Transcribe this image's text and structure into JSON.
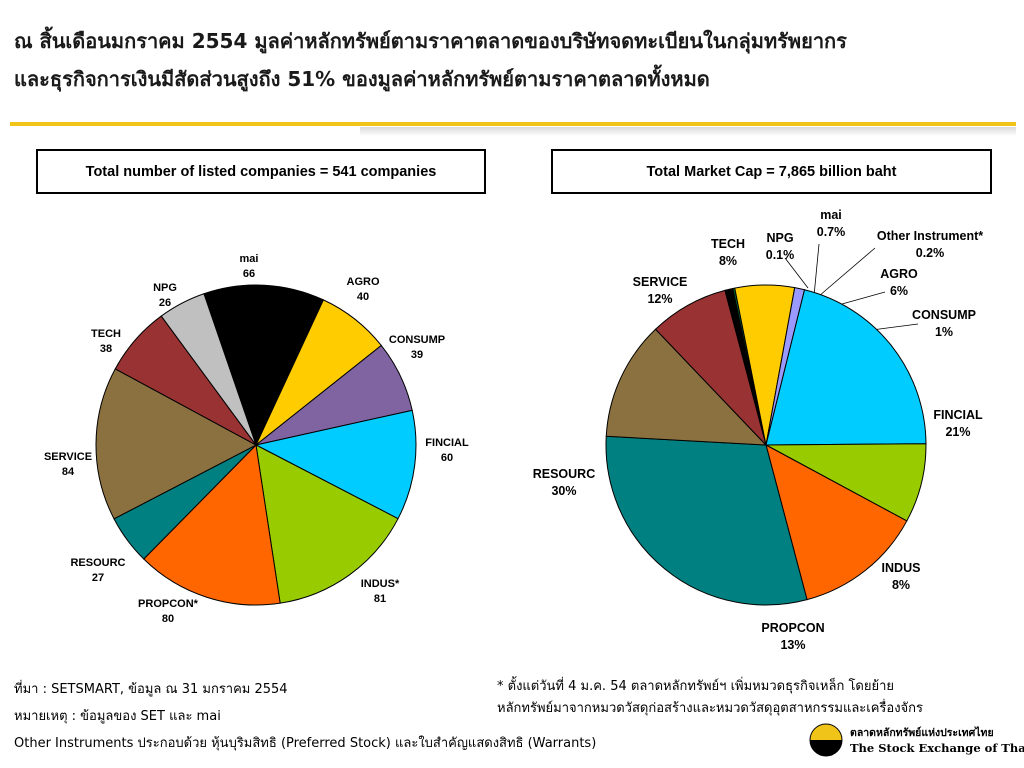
{
  "header": {
    "line1": "ณ สิ้นเดือนมกราคม 2554 มูลค่าหลักทรัพย์ตามราคาตลาดของบริษัทจดทะเบียนในกลุ่มทรัพยากร",
    "line2": "และธุรกิจการเงินมีสัดส่วนสูงถึง 51% ของมูลค่าหลักทรัพย์ตามราคาตลาดทั้งหมด"
  },
  "boxes": {
    "left": "Total number of listed companies = 541 companies",
    "right": "Total Market Cap = 7,865  billion baht"
  },
  "chart_data": [
    {
      "type": "pie",
      "title": "Total number of listed companies = 541 companies",
      "slices": [
        {
          "label": "mai",
          "value": 66,
          "value_label": "66",
          "color": "#000000"
        },
        {
          "label": "AGRO",
          "value": 40,
          "value_label": "40",
          "color": "#ffcc00"
        },
        {
          "label": "CONSUMP",
          "value": 39,
          "value_label": "39",
          "color": "#8064a2"
        },
        {
          "label": "FINCIAL",
          "value": 60,
          "value_label": "60",
          "color": "#00ccff"
        },
        {
          "label": "INDUS*",
          "value": 81,
          "value_label": "81",
          "color": "#99cc00"
        },
        {
          "label": "PROPCON*",
          "value": 80,
          "value_label": "80",
          "color": "#ff6600"
        },
        {
          "label": "RESOURC",
          "value": 27,
          "value_label": "27",
          "color": "#008080"
        },
        {
          "label": "SERVICE",
          "value": 84,
          "value_label": "84",
          "color": "#8c7140"
        },
        {
          "label": "TECH",
          "value": 38,
          "value_label": "38",
          "color": "#993333"
        },
        {
          "label": "NPG",
          "value": 26,
          "value_label": "26",
          "color": "#c0c0c0"
        }
      ]
    },
    {
      "type": "pie",
      "title": "Total Market Cap = 7,865  billion baht",
      "slices": [
        {
          "label": "mai",
          "value": 0.7,
          "value_label": "0.7%",
          "color": "#000000"
        },
        {
          "label": "Other Instrument*",
          "value": 0.2,
          "value_label": "0.2%",
          "color": "#006633"
        },
        {
          "label": "AGRO",
          "value": 6,
          "value_label": "6%",
          "color": "#ffcc00"
        },
        {
          "label": "CONSUMP",
          "value": 1,
          "value_label": "1%",
          "color": "#9999ff"
        },
        {
          "label": "FINCIAL",
          "value": 21,
          "value_label": "21%",
          "color": "#00ccff"
        },
        {
          "label": "INDUS",
          "value": 8,
          "value_label": "8%",
          "color": "#99cc00"
        },
        {
          "label": "PROPCON",
          "value": 13,
          "value_label": "13%",
          "color": "#ff6600"
        },
        {
          "label": "RESOURC",
          "value": 30,
          "value_label": "30%",
          "color": "#008080"
        },
        {
          "label": "SERVICE",
          "value": 12,
          "value_label": "12%",
          "color": "#8c7140"
        },
        {
          "label": "TECH",
          "value": 8,
          "value_label": "8%",
          "color": "#993333"
        },
        {
          "label": "NPG",
          "value": 0.1,
          "value_label": "0.1%",
          "color": "#c0c0c0"
        }
      ]
    }
  ],
  "notes": {
    "source": "ที่มา : SETSMART, ข้อมูล ณ 31 มกราคม 2554",
    "remark": "หมายเหตุ : ข้อมูลของ SET และ mai",
    "other_instruments": "Other Instruments ประกอบด้วย หุ้นบุริมสิทธิ (Preferred Stock) และใบสำคัญแสดงสิทธิ (Warrants)",
    "asterisk_line1": "* ตั้งแต่วันที่ 4 ม.ค. 54 ตลาดหลักทรัพย์ฯ เพิ่มหมวดธุรกิจเหล็ก โดยย้าย",
    "asterisk_line2": "หลักทรัพย์มาจากหมวดวัสดุก่อสร้างและหมวดวัสดุอุตสาหกรรมและเครื่องจักร"
  },
  "logo": {
    "thai_name": "ตลาดหลักทรัพย์แห่งประเทศไทย",
    "english_name": "The Stock Exchange of Thailand"
  }
}
